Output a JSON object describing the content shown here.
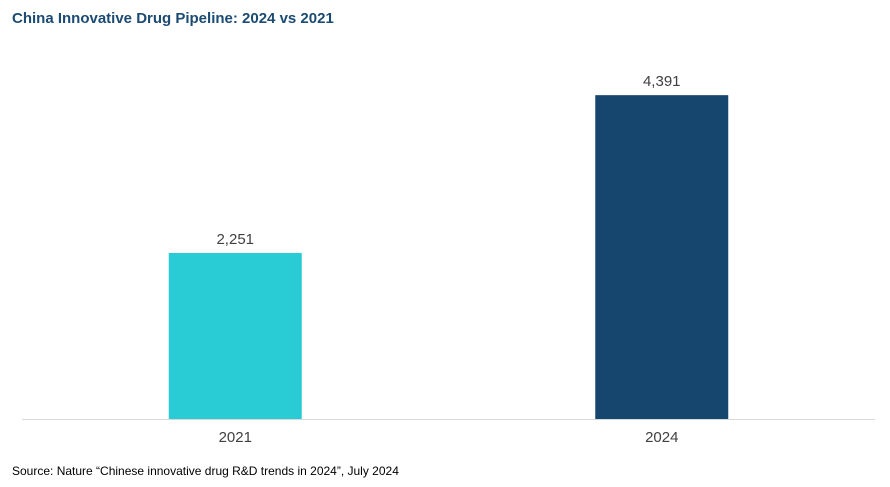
{
  "chart_data": {
    "type": "bar",
    "title": "China Innovative Drug Pipeline: 2024 vs 2021",
    "categories": [
      "2021",
      "2024"
    ],
    "values": [
      2251,
      4391
    ],
    "value_labels": [
      "2,251",
      "4,391"
    ],
    "bar_colors": [
      "#29ccd4",
      "#16456e"
    ],
    "xlabel": "",
    "ylabel": "",
    "ylim": [
      0,
      4800
    ],
    "grid": false,
    "legend": "none",
    "source": "Source: Nature “Chinese innovative drug R&D trends in 2024”, July 2024"
  }
}
